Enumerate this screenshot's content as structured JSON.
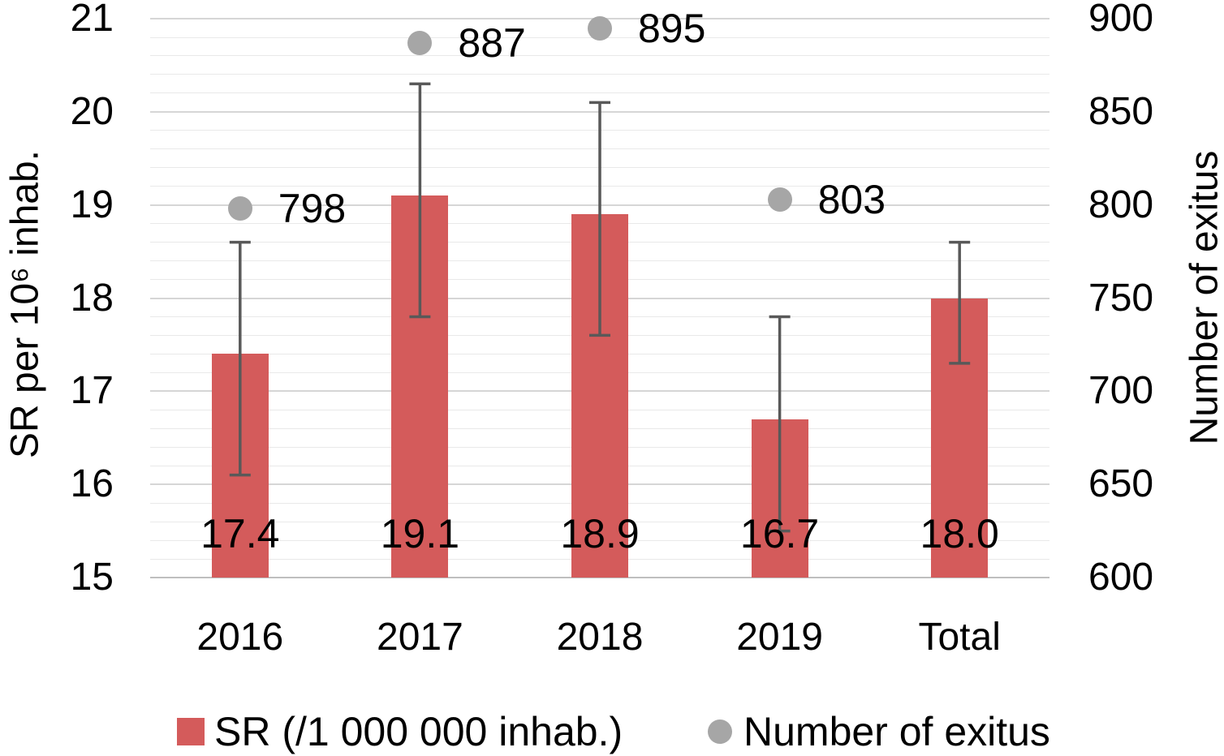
{
  "chart_data": {
    "type": "bar",
    "categories": [
      "2016",
      "2017",
      "2018",
      "2019",
      "Total"
    ],
    "series": [
      {
        "name": "SR (/1 000 000 inhab.)",
        "type": "bar",
        "axis": "left",
        "values": [
          17.4,
          19.1,
          18.9,
          16.7,
          18.0
        ],
        "value_labels": [
          "17.4",
          "19.1",
          "18.9",
          "16.7",
          "18.0"
        ],
        "error_low": [
          16.1,
          17.8,
          17.6,
          15.5,
          17.3
        ],
        "error_high": [
          18.6,
          20.3,
          20.1,
          17.8,
          18.6
        ],
        "color": "#D45B5B"
      },
      {
        "name": "Number of exitus",
        "type": "scatter",
        "axis": "right",
        "values": [
          798,
          887,
          895,
          803,
          null
        ],
        "value_labels": [
          "798",
          "887",
          "895",
          "803",
          ""
        ],
        "color": "#A6A6A6"
      }
    ],
    "left_axis": {
      "title": "SR per 10⁶ inhab.",
      "min": 15,
      "max": 21,
      "tick_step": 1,
      "minor_step": 0.2,
      "ticks": [
        "15",
        "16",
        "17",
        "18",
        "19",
        "20",
        "21"
      ]
    },
    "right_axis": {
      "title": "Number of exitus",
      "min": 600,
      "max": 900,
      "tick_step": 50,
      "ticks": [
        "600",
        "650",
        "700",
        "750",
        "800",
        "850",
        "900"
      ]
    },
    "legend": [
      {
        "label": "SR (/1 000 000 inhab.)",
        "marker": "square",
        "color": "#D45B5B"
      },
      {
        "label": "Number of exitus",
        "marker": "circle",
        "color": "#A6A6A6"
      }
    ],
    "grid": {
      "on": true,
      "minor_color": "#E9E9E9",
      "major_color": "#D6D6D6",
      "baseline_color": "#BFBFBF"
    },
    "error_bar_color": "#595959",
    "legend_position": "bottom"
  }
}
